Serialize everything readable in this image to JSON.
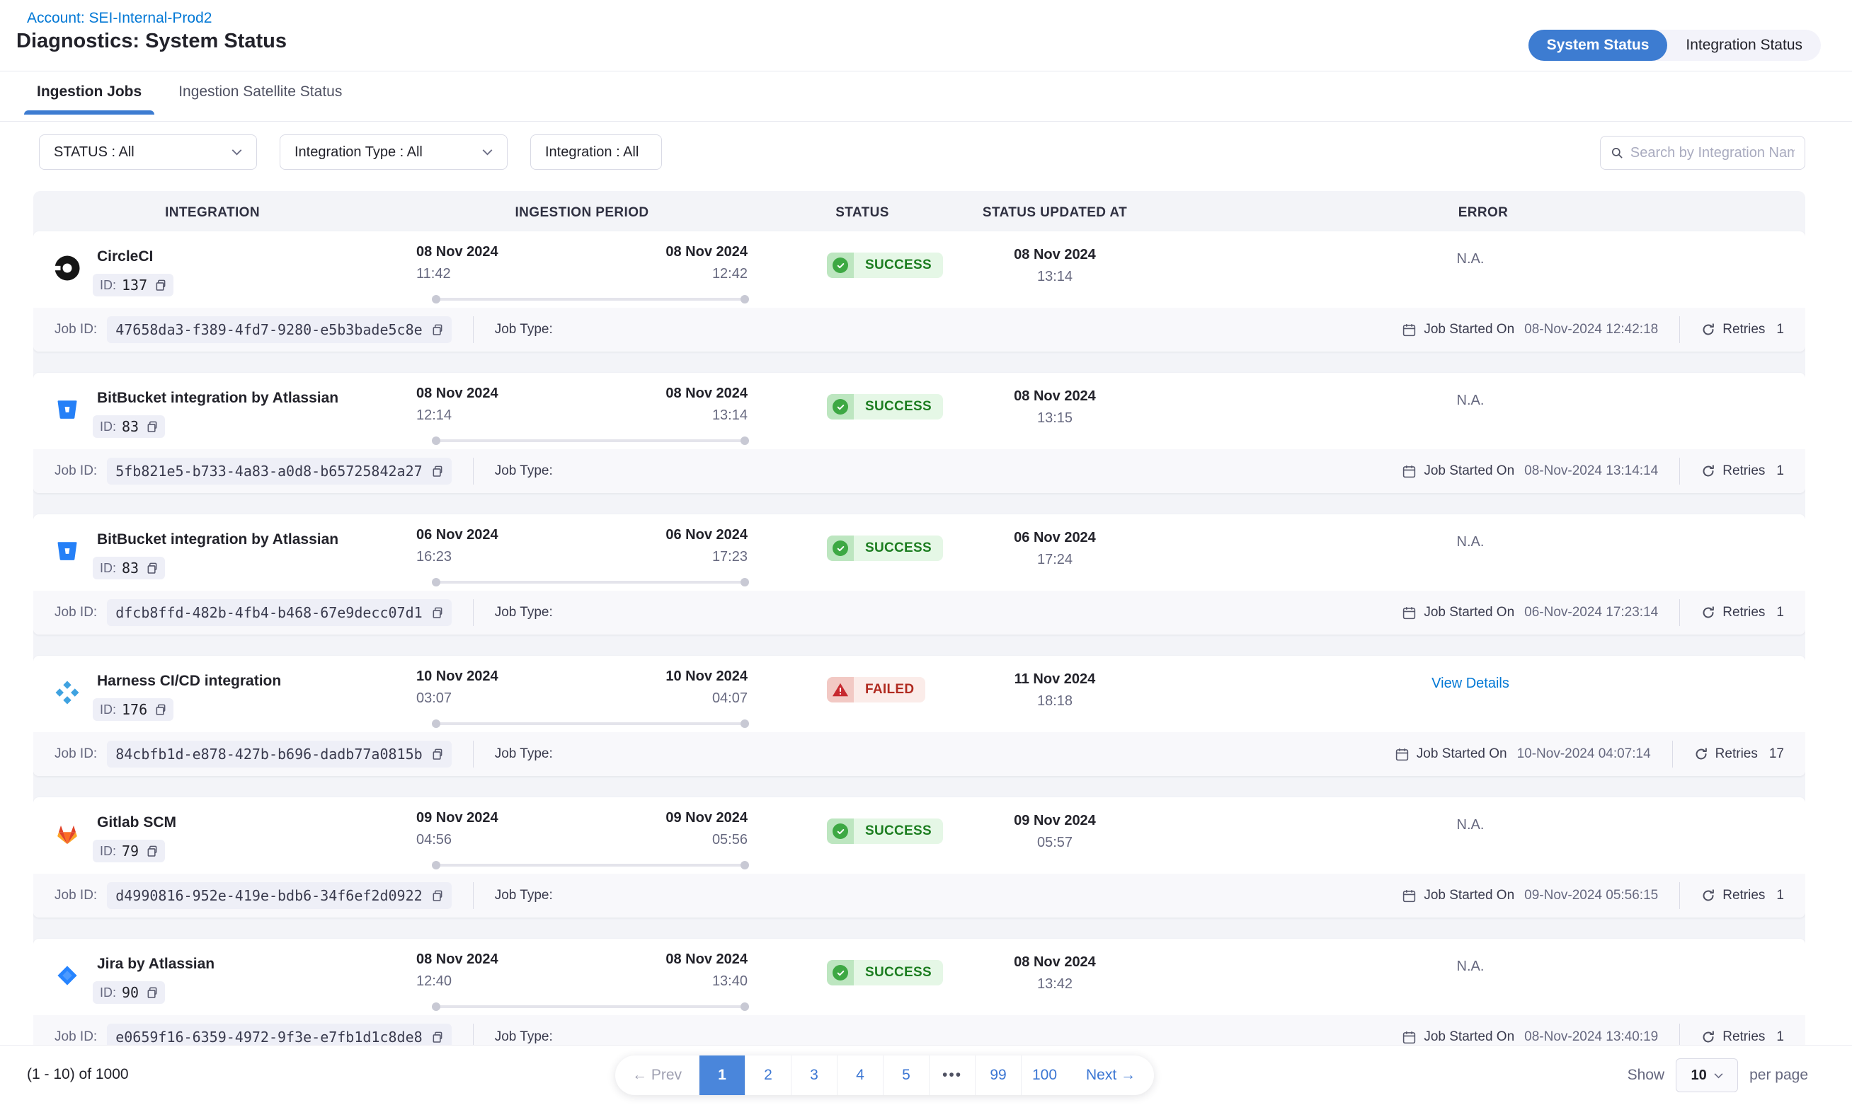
{
  "header": {
    "account_link": "Account: SEI-Internal-Prod2",
    "title": "Diagnostics: System Status",
    "toggle": {
      "system_status": "System Status",
      "integration_status": "Integration Status",
      "selected": "System Status"
    }
  },
  "tabs": [
    {
      "label": "Ingestion Jobs",
      "active": true
    },
    {
      "label": "Ingestion Satellite Status",
      "active": false
    }
  ],
  "filters": [
    {
      "label": "STATUS : All"
    },
    {
      "label": "Integration Type : All"
    },
    {
      "label": "Integration : All"
    }
  ],
  "search": {
    "placeholder": "Search by Integration Name"
  },
  "labels": {
    "id": "ID:",
    "job_id": "Job ID:",
    "job_type": "Job Type:",
    "job_started_on": "Job Started On",
    "retries": "Retries"
  },
  "table": {
    "columns": [
      "INTEGRATION",
      "INGESTION PERIOD",
      "STATUS",
      "STATUS UPDATED AT",
      "ERROR"
    ],
    "rows": [
      {
        "name": "CircleCI",
        "icon": "circleci",
        "id": "137",
        "period_start_date": "08 Nov 2024",
        "period_start_time": "11:42",
        "period_end_date": "08 Nov 2024",
        "period_end_time": "12:42",
        "status": "SUCCESS",
        "status_type": "success",
        "updated_date": "08 Nov 2024",
        "updated_time": "13:14",
        "error": "N.A.",
        "error_is_link": false,
        "job_id": "47658da3-f389-4fd7-9280-e5b3bade5c8e",
        "job_started": "08-Nov-2024 12:42:18",
        "retries": "1"
      },
      {
        "name": "BitBucket integration by Atlassian",
        "icon": "bitbucket",
        "id": "83",
        "period_start_date": "08 Nov 2024",
        "period_start_time": "12:14",
        "period_end_date": "08 Nov 2024",
        "period_end_time": "13:14",
        "status": "SUCCESS",
        "status_type": "success",
        "updated_date": "08 Nov 2024",
        "updated_time": "13:15",
        "error": "N.A.",
        "error_is_link": false,
        "job_id": "5fb821e5-b733-4a83-a0d8-b65725842a27",
        "job_started": "08-Nov-2024 13:14:14",
        "retries": "1"
      },
      {
        "name": "BitBucket integration by Atlassian",
        "icon": "bitbucket",
        "id": "83",
        "period_start_date": "06 Nov 2024",
        "period_start_time": "16:23",
        "period_end_date": "06 Nov 2024",
        "period_end_time": "17:23",
        "status": "SUCCESS",
        "status_type": "success",
        "updated_date": "06 Nov 2024",
        "updated_time": "17:24",
        "error": "N.A.",
        "error_is_link": false,
        "job_id": "dfcb8ffd-482b-4fb4-b468-67e9decc07d1",
        "job_started": "06-Nov-2024 17:23:14",
        "retries": "1"
      },
      {
        "name": "Harness CI/CD integration",
        "icon": "harness",
        "id": "176",
        "period_start_date": "10 Nov 2024",
        "period_start_time": "03:07",
        "period_end_date": "10 Nov 2024",
        "period_end_time": "04:07",
        "status": "FAILED",
        "status_type": "failed",
        "updated_date": "11 Nov 2024",
        "updated_time": "18:18",
        "error": "View Details",
        "error_is_link": true,
        "job_id": "84cbfb1d-e878-427b-b696-dadb77a0815b",
        "job_started": "10-Nov-2024 04:07:14",
        "retries": "17"
      },
      {
        "name": "Gitlab SCM",
        "icon": "gitlab",
        "id": "79",
        "period_start_date": "09 Nov 2024",
        "period_start_time": "04:56",
        "period_end_date": "09 Nov 2024",
        "period_end_time": "05:56",
        "status": "SUCCESS",
        "status_type": "success",
        "updated_date": "09 Nov 2024",
        "updated_time": "05:57",
        "error": "N.A.",
        "error_is_link": false,
        "job_id": "d4990816-952e-419e-bdb6-34f6ef2d0922",
        "job_started": "09-Nov-2024 05:56:15",
        "retries": "1"
      },
      {
        "name": "Jira by Atlassian",
        "icon": "jira",
        "id": "90",
        "period_start_date": "08 Nov 2024",
        "period_start_time": "12:40",
        "period_end_date": "08 Nov 2024",
        "period_end_time": "13:40",
        "status": "SUCCESS",
        "status_type": "success",
        "updated_date": "08 Nov 2024",
        "updated_time": "13:42",
        "error": "N.A.",
        "error_is_link": false,
        "job_id": "e0659f16-6359-4972-9f3e-e7fb1d1c8de8",
        "job_started": "08-Nov-2024 13:40:19",
        "retries": "1"
      }
    ]
  },
  "pagination": {
    "summary": "(1 - 10) of 1000",
    "prev_label": "← Prev",
    "next_label": "Next →",
    "pages": [
      "1",
      "2",
      "3",
      "4",
      "5",
      "•••",
      "99",
      "100"
    ],
    "active_page": "1",
    "show_label": "Show",
    "page_size": "10",
    "per_page_label": "per page"
  },
  "colors": {
    "accent_blue": "#0278D5",
    "toggle_blue": "#3D7CD1",
    "pagination_blue": "#3B76D3",
    "success_text": "#1C7D20",
    "failed_text": "#B02A20"
  }
}
